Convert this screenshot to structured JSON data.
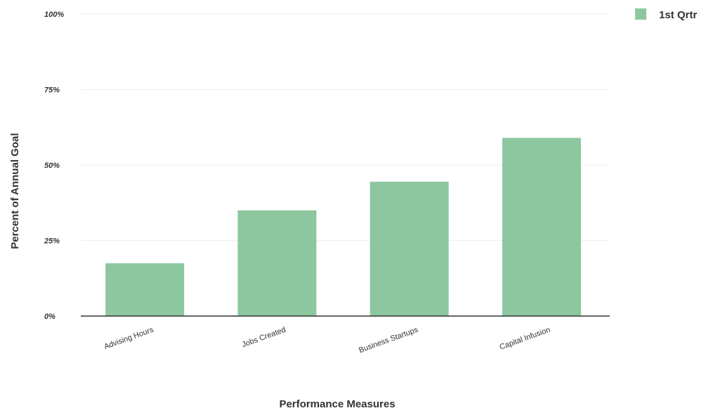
{
  "chart_data": {
    "type": "bar",
    "title": "",
    "xlabel": "Performance Measures",
    "ylabel": "Percent of Annual Goal",
    "categories": [
      "Advising Hours",
      "Jobs Created",
      "Business Startups",
      "Capital Infusion"
    ],
    "series": [
      {
        "name": "1st Qrtr",
        "values": [
          17.5,
          35,
          44.5,
          59
        ],
        "color": "#8cc7a0"
      }
    ],
    "ylim": [
      0,
      100
    ],
    "yticks": [
      0,
      25,
      50,
      75,
      100
    ],
    "ytick_labels": [
      "0%",
      "25%",
      "50%",
      "75%",
      "100%"
    ],
    "grid": true,
    "legend_position": "top-right",
    "colors": {
      "bar": "#8cc7a0",
      "baseline": "#333333",
      "grid": "#eeeeee",
      "text": "#333333"
    }
  }
}
